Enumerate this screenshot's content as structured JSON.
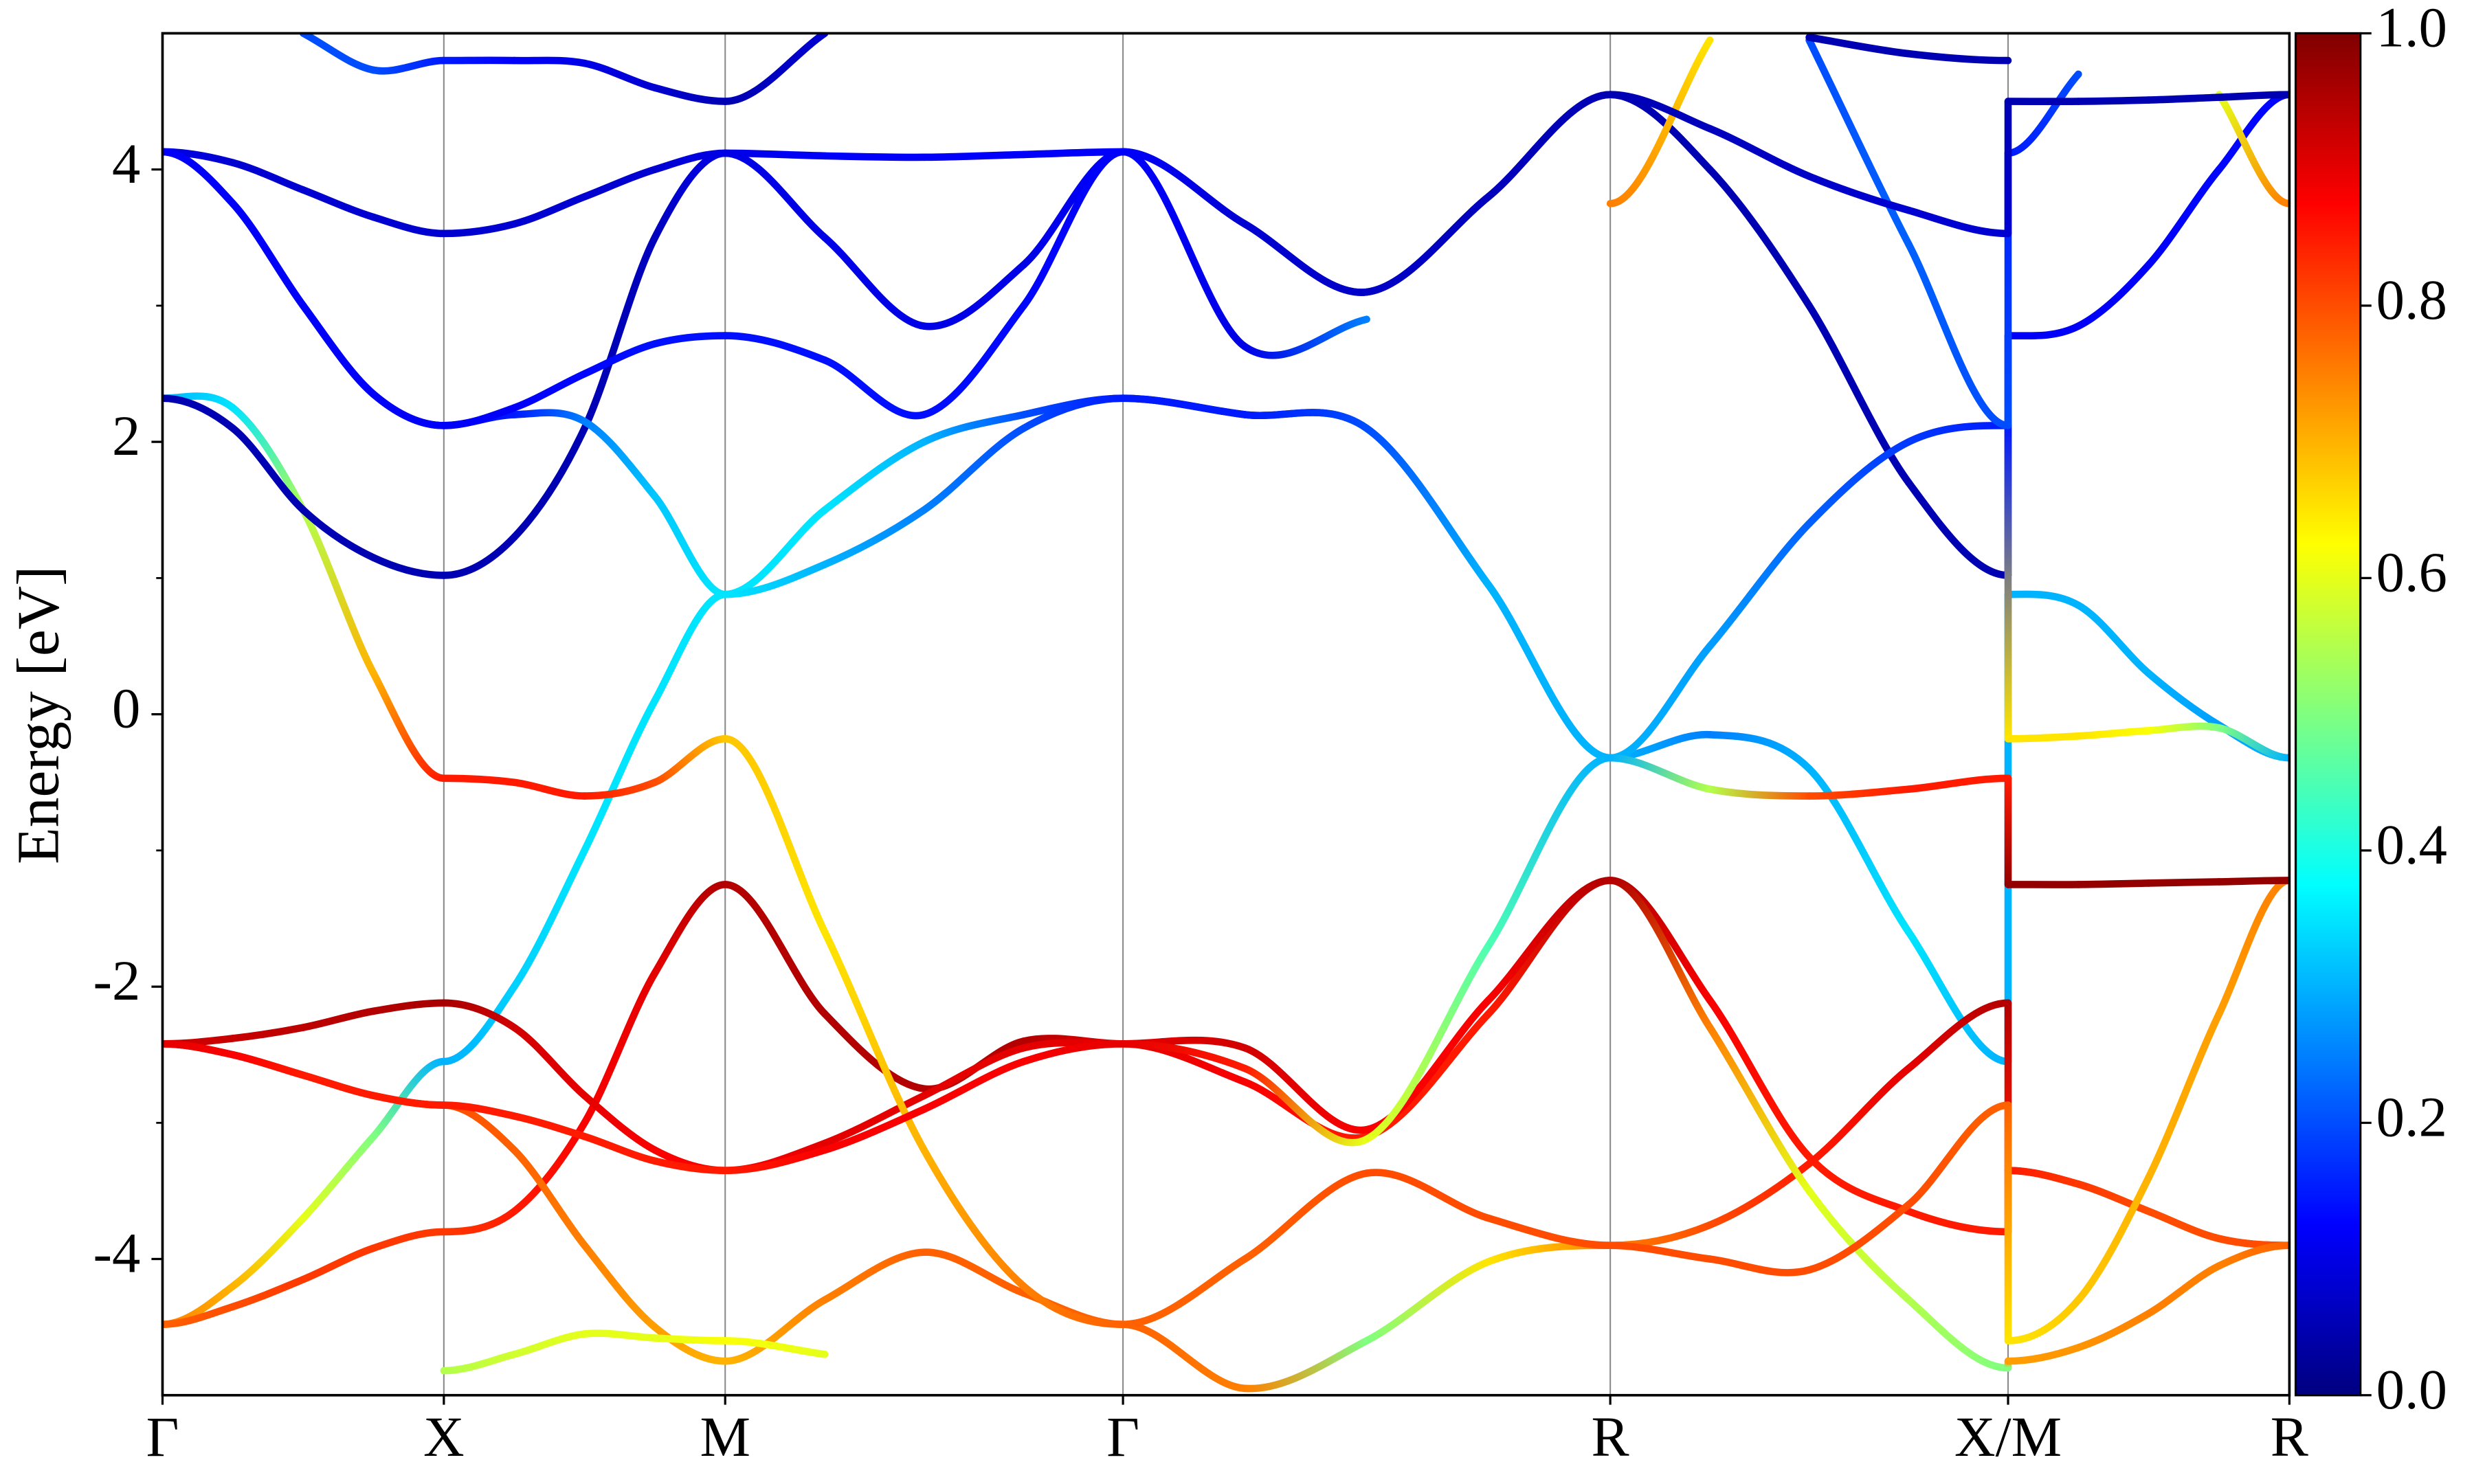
{
  "chart_data": {
    "type": "band",
    "ylabel": "Energy [eV]",
    "colormap": "jet",
    "clim": [
      0,
      1
    ],
    "cticks": [
      {
        "value": 0,
        "label": "0.0"
      },
      0.2,
      0.4,
      0.6,
      0.8,
      {
        "value": 1,
        "label": "1.0"
      }
    ],
    "xlim": [
      0,
      7.56
    ],
    "xticks": [
      {
        "value": 0,
        "label": "Γ"
      },
      {
        "value": 1,
        "label": "X"
      },
      {
        "value": 2,
        "label": "M"
      },
      {
        "value": 3.414,
        "label": "Γ"
      },
      {
        "value": 5.146,
        "label": "R"
      },
      {
        "value": 6.56,
        "label": "X/M"
      },
      {
        "value": 7.56,
        "label": "R"
      }
    ],
    "xgrid": true,
    "ylim": [
      -5,
      5
    ],
    "yticks": [
      -4,
      -2,
      0,
      2,
      4
    ],
    "yminorticks": [
      -3,
      -1,
      1,
      3
    ],
    "x": [
      0,
      0.25,
      0.5,
      0.75,
      1,
      1.25,
      1.5,
      1.75,
      2,
      2.354,
      2.707,
      3.061,
      3.414,
      3.847,
      4.28,
      4.713,
      5.146,
      5.5,
      5.853,
      6.207,
      6.56,
      6.56,
      6.81,
      7.06,
      7.31,
      7.56
    ],
    "series": [
      {
        "values": [
          -4.48,
          -4.2,
          -3.7,
          -3.1,
          -2.55,
          -2.0,
          -1.0,
          0.1,
          0.88,
          1.5,
          2.0,
          2.2,
          2.32,
          2.2,
          2.1,
          0.95,
          -0.32,
          -0.15,
          -0.4,
          -1.6,
          -2.55,
          0.88,
          0.8,
          0.3,
          -0.08,
          -0.32
        ],
        "weights": [
          0.75,
          0.7,
          0.6,
          0.5,
          0.3,
          0.33,
          0.35,
          0.35,
          0.35,
          0.35,
          0.3,
          0.2,
          0.15,
          0.15,
          0.2,
          0.3,
          0.3,
          0.25,
          0.3,
          0.35,
          0.3,
          0.3,
          0.3,
          0.3,
          0.28,
          0.3
        ]
      },
      {
        "values": [
          -4.48,
          -4.35,
          -4.15,
          -3.92,
          -3.8,
          -3.65,
          -3.0,
          -1.9,
          -1.25,
          -2.2,
          -2.75,
          -2.4,
          -2.42,
          -2.7,
          -3.1,
          -2.2,
          -1.22,
          -2.1,
          -3.25,
          -3.65,
          -3.8,
          -3.35,
          -3.45,
          -3.65,
          -3.85,
          -3.9
        ],
        "weights": [
          0.78,
          0.8,
          0.82,
          0.82,
          0.82,
          0.85,
          0.88,
          0.9,
          0.95,
          0.95,
          0.95,
          0.95,
          0.9,
          0.88,
          0.85,
          0.85,
          0.95,
          0.88,
          0.85,
          0.85,
          0.85,
          0.85,
          0.82,
          0.8,
          0.8,
          0.8
        ]
      },
      {
        "values": [
          -2.42,
          -2.5,
          -2.65,
          -2.8,
          -2.87,
          -3.2,
          -3.9,
          -4.5,
          -4.75,
          -4.3,
          -3.95,
          -4.25,
          -4.48,
          -4.95,
          -4.6,
          -4.02,
          -3.9,
          -3.75,
          -3.3,
          -2.6,
          -2.12,
          -3.35,
          -3.45,
          -3.65,
          -3.85,
          -3.9
        ],
        "weights": [
          0.9,
          0.88,
          0.85,
          0.82,
          0.8,
          0.78,
          0.75,
          0.72,
          0.7,
          0.75,
          0.78,
          0.78,
          0.78,
          0.75,
          0.5,
          0.65,
          0.75,
          0.8,
          0.85,
          0.9,
          0.95,
          0.85,
          0.82,
          0.8,
          0.8,
          0.8
        ]
      },
      {
        "values": [
          -2.42,
          -2.38,
          -2.3,
          -2.18,
          -2.12,
          -2.3,
          -2.8,
          -3.2,
          -3.35,
          -3.15,
          -2.8,
          -2.45,
          -2.42,
          -2.45,
          -3.05,
          -2.1,
          -1.22,
          -2.3,
          -3.5,
          -4.3,
          -4.8,
          -4.75,
          -4.65,
          -4.4,
          -4.05,
          -3.9
        ],
        "weights": [
          0.92,
          0.93,
          0.94,
          0.95,
          0.96,
          0.92,
          0.9,
          0.88,
          0.88,
          0.9,
          0.9,
          0.9,
          0.9,
          0.92,
          0.88,
          0.88,
          0.95,
          0.75,
          0.6,
          0.55,
          0.5,
          0.72,
          0.73,
          0.75,
          0.75,
          0.78
        ]
      },
      {
        "values": [
          2.32,
          2.25,
          1.5,
          0.3,
          -0.47,
          -0.5,
          -0.6,
          -0.5,
          -0.18,
          -1.6,
          -3.2,
          -4.2,
          -4.48,
          -4.0,
          -3.37,
          -3.7,
          -3.9,
          -4.0,
          -4.08,
          -3.6,
          -2.87,
          -4.6,
          -4.3,
          -3.4,
          -2.2,
          -1.22
        ],
        "weights": [
          0.3,
          0.35,
          0.55,
          0.7,
          0.85,
          0.85,
          0.85,
          0.8,
          0.68,
          0.65,
          0.7,
          0.75,
          0.78,
          0.78,
          0.8,
          0.8,
          0.8,
          0.8,
          0.8,
          0.8,
          0.78,
          0.65,
          0.68,
          0.7,
          0.72,
          0.75
        ]
      },
      {
        "values": [
          2.32,
          2.1,
          1.5,
          1.15,
          1.02,
          1.3,
          2.1,
          3.5,
          4.12,
          4.1,
          4.09,
          4.11,
          4.13,
          3.6,
          3.1,
          3.8,
          4.55,
          4.0,
          3.0,
          1.7,
          1.02,
          2.78,
          2.85,
          3.3,
          4.0,
          4.55
        ],
        "weights": [
          0.05,
          0.05,
          0.05,
          0.05,
          0.05,
          0.05,
          0.05,
          0.06,
          0.1,
          0.12,
          0.12,
          0.12,
          0.12,
          0.08,
          0.07,
          0.06,
          0.05,
          0.05,
          0.05,
          0.05,
          0.05,
          0.12,
          0.12,
          0.12,
          0.13,
          0.13
        ]
      },
      {
        "values": [
          4.13,
          3.75,
          3.0,
          2.35,
          2.12,
          2.2,
          2.15,
          1.6,
          0.88,
          1.1,
          1.5,
          2.1,
          2.32,
          2.2,
          2.1,
          0.95,
          -0.32,
          0.5,
          1.4,
          2.0,
          2.12,
          -0.18,
          -0.16,
          -0.12,
          -0.1,
          -0.32
        ],
        "weights": [
          0.12,
          0.12,
          0.12,
          0.12,
          0.12,
          0.15,
          0.25,
          0.32,
          0.35,
          0.3,
          0.25,
          0.2,
          0.15,
          0.15,
          0.2,
          0.3,
          0.3,
          0.28,
          0.22,
          0.18,
          0.15,
          0.65,
          0.65,
          0.62,
          0.5,
          0.3
        ]
      },
      {
        "values": [
          4.13,
          4.05,
          3.85,
          3.65,
          3.53,
          3.6,
          3.8,
          4.0,
          4.12,
          3.5,
          2.85,
          3.3,
          4.13,
          2.7,
          2.9,
          null,
          3.75,
          4.95,
          null,
          null,
          null,
          null,
          null,
          null,
          4.55,
          3.75
        ],
        "weights": [
          0.1,
          0.08,
          0.08,
          0.08,
          0.08,
          0.08,
          0.08,
          0.08,
          0.1,
          0.1,
          0.1,
          0.1,
          0.12,
          0.1,
          0.25,
          null,
          0.75,
          0.65,
          null,
          null,
          null,
          null,
          null,
          null,
          0.6,
          0.75
        ]
      },
      {
        "values": [
          null,
          null,
          5.0,
          4.73,
          4.8,
          4.8,
          4.78,
          4.6,
          4.5,
          5.0,
          null,
          null,
          null,
          null,
          null,
          null,
          null,
          null,
          4.95,
          3.45,
          2.12,
          4.12,
          4.7,
          null,
          null,
          null
        ],
        "weights": [
          null,
          null,
          0.2,
          0.2,
          0.15,
          0.12,
          0.1,
          0.08,
          0.05,
          0.08,
          null,
          null,
          null,
          null,
          null,
          null,
          null,
          null,
          0.2,
          0.22,
          0.2,
          0.15,
          0.2,
          null,
          null,
          null
        ]
      },
      {
        "values": [
          null,
          null,
          null,
          null,
          -4.82,
          -4.7,
          -4.55,
          -4.58,
          -4.6,
          -4.7,
          null,
          null,
          null,
          null,
          null,
          null,
          null,
          null,
          4.97,
          4.85,
          4.8,
          null,
          null,
          null,
          null,
          null
        ],
        "weights": [
          null,
          null,
          null,
          null,
          0.55,
          0.58,
          0.6,
          0.6,
          0.62,
          0.6,
          null,
          null,
          null,
          null,
          null,
          null,
          null,
          null,
          0.05,
          0.05,
          0.05,
          null,
          null,
          null,
          null,
          null
        ]
      },
      {
        "values": [
          -2.42,
          -2.5,
          -2.65,
          -2.8,
          -2.87,
          -2.95,
          -3.1,
          -3.28,
          -3.35,
          -3.2,
          -2.9,
          -2.55,
          -2.42,
          -2.6,
          -3.12,
          -1.7,
          -0.32,
          -0.55,
          -0.6,
          -0.55,
          -0.47,
          -1.25,
          -1.25,
          -1.24,
          -1.23,
          -1.22
        ],
        "weights": [
          0.9,
          0.88,
          0.85,
          0.85,
          0.85,
          0.85,
          0.85,
          0.85,
          0.85,
          0.88,
          0.88,
          0.88,
          0.9,
          0.85,
          0.6,
          0.45,
          0.3,
          0.55,
          0.8,
          0.85,
          0.85,
          0.98,
          0.98,
          0.98,
          0.98,
          0.98
        ]
      },
      {
        "values": [
          4.13,
          3.75,
          3.0,
          2.35,
          2.12,
          2.25,
          2.5,
          2.72,
          2.78,
          2.6,
          2.2,
          3.0,
          4.13,
          3.6,
          3.1,
          3.8,
          4.55,
          4.3,
          3.95,
          3.7,
          3.53,
          4.5,
          4.5,
          4.51,
          4.53,
          4.55
        ],
        "weights": [
          0.12,
          0.12,
          0.12,
          0.12,
          0.12,
          0.12,
          0.13,
          0.14,
          0.14,
          0.14,
          0.14,
          0.13,
          0.12,
          0.08,
          0.07,
          0.06,
          0.05,
          0.06,
          0.07,
          0.08,
          0.08,
          0.05,
          0.05,
          0.05,
          0.05,
          0.05
        ]
      }
    ]
  }
}
